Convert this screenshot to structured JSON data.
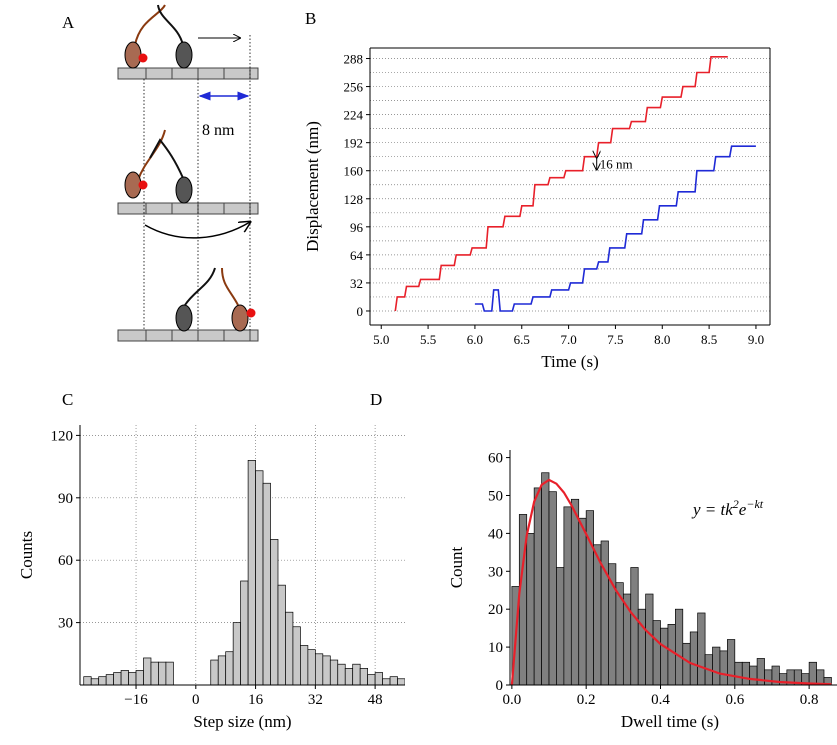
{
  "figure": {
    "panel_labels": [
      "A",
      "B",
      "C",
      "D"
    ],
    "distance_label": "8 nm"
  },
  "chart_data": [
    {
      "type": "line",
      "xlabel": "Time (s)",
      "ylabel": "Displacement (nm)",
      "annotation": "16 nm",
      "xlim": [
        4.88,
        9.15
      ],
      "ylim": [
        -16,
        300
      ],
      "xticks": [
        {
          "value": 5,
          "label": "5.0"
        },
        {
          "value": 5.5,
          "label": "5.5"
        },
        {
          "value": 6,
          "label": "6.0"
        },
        {
          "value": 6.5,
          "label": "6.5"
        },
        {
          "value": 7,
          "label": "7.0"
        },
        {
          "value": 7.5,
          "label": "7.5"
        },
        {
          "value": 8,
          "label": "8.0"
        },
        {
          "value": 8.5,
          "label": "8.5"
        },
        {
          "value": 9,
          "label": "9.0"
        }
      ],
      "yticks": [
        0,
        32,
        64,
        96,
        128,
        160,
        192,
        224,
        256,
        288
      ],
      "minor_yticks": [
        16,
        48,
        80,
        112,
        144,
        176,
        208,
        240,
        272
      ],
      "grid": true,
      "series": [
        {
          "color": "#e8202a",
          "x": [
            5.15,
            5.17,
            5.25,
            5.27,
            5.4,
            5.42,
            5.62,
            5.64,
            5.78,
            5.8,
            5.95,
            5.97,
            6.12,
            6.14,
            6.3,
            6.32,
            6.48,
            6.5,
            6.62,
            6.64,
            6.78,
            6.8,
            6.95,
            6.97,
            7.15,
            7.17,
            7.3,
            7.32,
            7.45,
            7.47,
            7.65,
            7.67,
            7.82,
            7.84,
            7.98,
            8.0,
            8.2,
            8.22,
            8.35,
            8.37,
            8.5,
            8.52,
            8.7
          ],
          "values": [
            0,
            16,
            16,
            28,
            28,
            36,
            36,
            52,
            52,
            64,
            64,
            72,
            72,
            96,
            96,
            108,
            108,
            120,
            120,
            144,
            144,
            152,
            152,
            160,
            160,
            176,
            176,
            192,
            192,
            208,
            208,
            216,
            216,
            232,
            232,
            244,
            244,
            256,
            256,
            272,
            272,
            290,
            290
          ]
        },
        {
          "color": "#1f2ad6",
          "x": [
            6.0,
            6.08,
            6.1,
            6.18,
            6.2,
            6.25,
            6.27,
            6.4,
            6.42,
            6.6,
            6.62,
            6.8,
            6.82,
            7.0,
            7.02,
            7.15,
            7.17,
            7.3,
            7.32,
            7.42,
            7.44,
            7.6,
            7.62,
            7.78,
            7.8,
            7.95,
            7.97,
            8.15,
            8.17,
            8.35,
            8.37,
            8.55,
            8.57,
            8.72,
            8.74,
            9.0
          ],
          "values": [
            8,
            8,
            0,
            0,
            24,
            24,
            0,
            0,
            8,
            8,
            16,
            16,
            24,
            24,
            32,
            32,
            48,
            48,
            56,
            56,
            72,
            72,
            88,
            88,
            104,
            104,
            120,
            120,
            136,
            136,
            160,
            160,
            176,
            176,
            188,
            188
          ]
        }
      ]
    },
    {
      "type": "histogram",
      "xlabel": "Step size (nm)",
      "ylabel": "Counts",
      "color": "#c8c8c8",
      "grid": true,
      "xlim": [
        -31,
        56
      ],
      "ylim": [
        0,
        125
      ],
      "xticks": [
        {
          "value": -16,
          "label": "−16"
        },
        0,
        16,
        32,
        48
      ],
      "yticks": [
        30,
        60,
        90,
        120
      ],
      "bins": [
        -30,
        -28,
        -26,
        -24,
        -22,
        -20,
        -18,
        -16,
        -14,
        -12,
        -10,
        -8,
        -6,
        -4,
        -2,
        0,
        2,
        4,
        6,
        8,
        10,
        12,
        14,
        16,
        18,
        20,
        22,
        24,
        26,
        28,
        30,
        32,
        34,
        36,
        38,
        40,
        42,
        44,
        46,
        48,
        50,
        52,
        54,
        56
      ],
      "values": [
        4,
        3,
        4,
        5,
        6,
        7,
        6,
        7,
        13,
        11,
        11,
        11,
        0,
        0,
        0,
        0,
        0,
        12,
        14,
        16,
        30,
        50,
        108,
        103,
        97,
        70,
        48,
        35,
        28,
        19,
        17,
        15,
        14,
        12,
        10,
        8,
        10,
        8,
        5,
        6,
        3,
        4,
        3
      ]
    },
    {
      "type": "histogram",
      "xlabel": "Dwell time (s)",
      "ylabel": "Count",
      "color": "#808080",
      "grid": false,
      "xlim": [
        -0.005,
        0.875
      ],
      "ylim": [
        0,
        62
      ],
      "xticks": [
        {
          "value": 0,
          "label": "0.0"
        },
        {
          "value": 0.2,
          "label": "0.2"
        },
        {
          "value": 0.4,
          "label": "0.4"
        },
        {
          "value": 0.6,
          "label": "0.6"
        },
        {
          "value": 0.8,
          "label": "0.8"
        }
      ],
      "yticks": [
        0,
        10,
        20,
        30,
        40,
        50,
        60
      ],
      "bins": [
        0,
        0.02,
        0.04,
        0.06,
        0.08,
        0.1,
        0.12,
        0.14,
        0.16,
        0.18,
        0.2,
        0.22,
        0.24,
        0.26,
        0.28,
        0.3,
        0.32,
        0.34,
        0.36,
        0.38,
        0.4,
        0.42,
        0.44,
        0.46,
        0.48,
        0.5,
        0.52,
        0.54,
        0.56,
        0.58,
        0.6,
        0.62,
        0.64,
        0.66,
        0.68,
        0.7,
        0.72,
        0.74,
        0.76,
        0.78,
        0.8,
        0.82,
        0.84,
        0.86
      ],
      "values": [
        26,
        45,
        40,
        52,
        56,
        51,
        31,
        47,
        49,
        44,
        46,
        37,
        38,
        32,
        27,
        24,
        31,
        20,
        24,
        17,
        15,
        16,
        20,
        11,
        14,
        19,
        8,
        10,
        9,
        12,
        6,
        6,
        5,
        7,
        4,
        5,
        3,
        4,
        4,
        3,
        6,
        4,
        2
      ],
      "annotation_parts": [
        "y = tk",
        "2",
        "e",
        "−kt"
      ],
      "fit": {
        "color": "#e8202a",
        "x": [
          0,
          0.02,
          0.04,
          0.06,
          0.08,
          0.1,
          0.12,
          0.14,
          0.16,
          0.2,
          0.24,
          0.28,
          0.32,
          0.36,
          0.4,
          0.48,
          0.56,
          0.64,
          0.72,
          0.8,
          0.86
        ],
        "values": [
          0,
          24.1,
          39.4,
          48.4,
          52.8,
          54.1,
          53.1,
          50.8,
          47.5,
          39.8,
          32.0,
          25.0,
          19.2,
          14.5,
          10.8,
          5.8,
          3.0,
          1.6,
          0.8,
          0.4,
          0.2
        ]
      }
    }
  ]
}
